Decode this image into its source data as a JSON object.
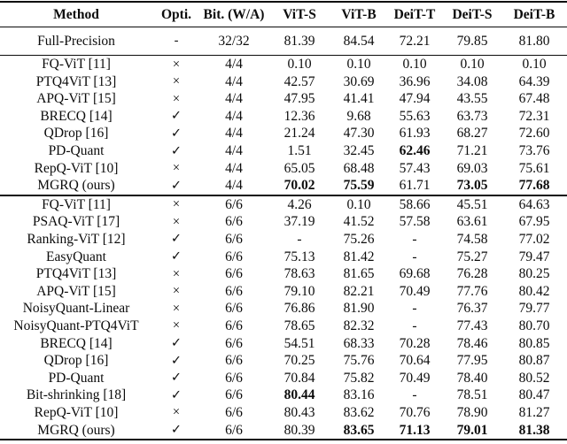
{
  "table": {
    "headers": [
      "Method",
      "Opti.",
      "Bit. (W/A)",
      "ViT-S",
      "ViT-B",
      "DeiT-T",
      "DeiT-S",
      "DeiT-B"
    ],
    "glyphs": {
      "check": "✓",
      "cross": "×",
      "dash": "-"
    },
    "sections": [
      {
        "name": "full-precision",
        "rows": [
          {
            "method": "Full-Precision",
            "opti": "-",
            "bit": "32/32",
            "vals": [
              "81.39",
              "84.54",
              "72.21",
              "79.85",
              "81.80"
            ]
          }
        ]
      },
      {
        "name": "w4a4",
        "rows": [
          {
            "method": "FQ-ViT [11]",
            "opti": "×",
            "bit": "4/4",
            "vals": [
              "0.10",
              "0.10",
              "0.10",
              "0.10",
              "0.10"
            ]
          },
          {
            "method": "PTQ4ViT [13]",
            "opti": "×",
            "bit": "4/4",
            "vals": [
              "42.57",
              "30.69",
              "36.96",
              "34.08",
              "64.39"
            ]
          },
          {
            "method": "APQ-ViT [15]",
            "opti": "×",
            "bit": "4/4",
            "vals": [
              "47.95",
              "41.41",
              "47.94",
              "43.55",
              "67.48"
            ]
          },
          {
            "method": "BRECQ [14]",
            "opti": "✓",
            "bit": "4/4",
            "vals": [
              "12.36",
              "9.68",
              "55.63",
              "63.73",
              "72.31"
            ]
          },
          {
            "method": "QDrop [16]",
            "opti": "✓",
            "bit": "4/4",
            "vals": [
              "21.24",
              "47.30",
              "61.93",
              "68.27",
              "72.60"
            ]
          },
          {
            "method": "PD-Quant",
            "opti": "✓",
            "bit": "4/4",
            "vals": [
              "1.51",
              "32.45",
              "62.46",
              "71.21",
              "73.76"
            ],
            "bold": [
              false,
              false,
              true,
              false,
              false
            ]
          },
          {
            "method": "RepQ-ViT [10]",
            "opti": "×",
            "bit": "4/4",
            "vals": [
              "65.05",
              "68.48",
              "57.43",
              "69.03",
              "75.61"
            ]
          },
          {
            "method": "MGRQ (ours)",
            "opti": "✓",
            "bit": "4/4",
            "vals": [
              "70.02",
              "75.59",
              "61.71",
              "73.05",
              "77.68"
            ],
            "bold": [
              true,
              true,
              false,
              true,
              true
            ]
          }
        ]
      },
      {
        "name": "w6a6",
        "rows": [
          {
            "method": "FQ-ViT [11]",
            "opti": "×",
            "bit": "6/6",
            "vals": [
              "4.26",
              "0.10",
              "58.66",
              "45.51",
              "64.63"
            ]
          },
          {
            "method": "PSAQ-ViT [17]",
            "opti": "×",
            "bit": "6/6",
            "vals": [
              "37.19",
              "41.52",
              "57.58",
              "63.61",
              "67.95"
            ]
          },
          {
            "method": "Ranking-ViT [12]",
            "opti": "✓",
            "bit": "6/6",
            "vals": [
              "-",
              "75.26",
              "-",
              "74.58",
              "77.02"
            ]
          },
          {
            "method": "EasyQuant",
            "opti": "✓",
            "bit": "6/6",
            "vals": [
              "75.13",
              "81.42",
              "-",
              "75.27",
              "79.47"
            ]
          },
          {
            "method": "PTQ4ViT [13]",
            "opti": "×",
            "bit": "6/6",
            "vals": [
              "78.63",
              "81.65",
              "69.68",
              "76.28",
              "80.25"
            ]
          },
          {
            "method": "APQ-ViT [15]",
            "opti": "×",
            "bit": "6/6",
            "vals": [
              "79.10",
              "82.21",
              "70.49",
              "77.76",
              "80.42"
            ]
          },
          {
            "method": "NoisyQuant-Linear",
            "opti": "×",
            "bit": "6/6",
            "vals": [
              "76.86",
              "81.90",
              "-",
              "76.37",
              "79.77"
            ]
          },
          {
            "method": "NoisyQuant-PTQ4ViT",
            "opti": "×",
            "bit": "6/6",
            "vals": [
              "78.65",
              "82.32",
              "-",
              "77.43",
              "80.70"
            ]
          },
          {
            "method": "BRECQ [14]",
            "opti": "✓",
            "bit": "6/6",
            "vals": [
              "54.51",
              "68.33",
              "70.28",
              "78.46",
              "80.85"
            ]
          },
          {
            "method": "QDrop [16]",
            "opti": "✓",
            "bit": "6/6",
            "vals": [
              "70.25",
              "75.76",
              "70.64",
              "77.95",
              "80.87"
            ]
          },
          {
            "method": "PD-Quant",
            "opti": "✓",
            "bit": "6/6",
            "vals": [
              "70.84",
              "75.82",
              "70.49",
              "78.40",
              "80.52"
            ]
          },
          {
            "method": "Bit-shrinking [18]",
            "opti": "✓",
            "bit": "6/6",
            "vals": [
              "80.44",
              "83.16",
              "-",
              "78.51",
              "80.47"
            ],
            "bold": [
              true,
              false,
              false,
              false,
              false
            ]
          },
          {
            "method": "RepQ-ViT [10]",
            "opti": "×",
            "bit": "6/6",
            "vals": [
              "80.43",
              "83.62",
              "70.76",
              "78.90",
              "81.27"
            ]
          },
          {
            "method": "MGRQ (ours)",
            "opti": "✓",
            "bit": "6/6",
            "vals": [
              "80.39",
              "83.65",
              "71.13",
              "79.01",
              "81.38"
            ],
            "bold": [
              false,
              true,
              true,
              true,
              true
            ]
          }
        ]
      }
    ]
  }
}
